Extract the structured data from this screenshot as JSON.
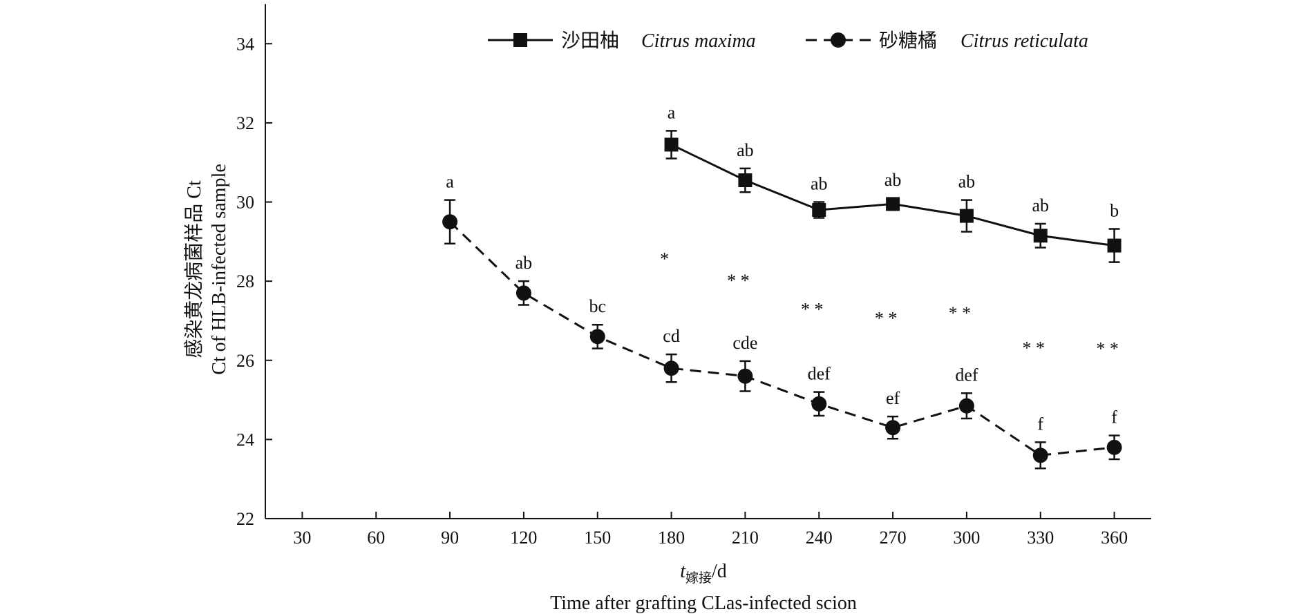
{
  "chart_data": {
    "type": "line",
    "x": [
      30,
      60,
      90,
      120,
      150,
      180,
      210,
      240,
      270,
      300,
      330,
      360
    ],
    "xlim": [
      15,
      375
    ],
    "ylim": [
      22,
      35
    ],
    "xticks": [
      30,
      60,
      90,
      120,
      150,
      180,
      210,
      240,
      270,
      300,
      330,
      360
    ],
    "yticks": [
      22,
      24,
      26,
      28,
      30,
      32,
      34
    ],
    "xlabel_var": "t",
    "xlabel_sub": "嫁接",
    "xlabel_unit": "/d",
    "xlabel_en": "Time after grafting CLas-infected scion",
    "ylabel_cn": "感染黄龙病菌样品 Ct",
    "ylabel_en": "Ct of HLB-infected sample",
    "legend_position": "top-right",
    "grid": false,
    "series": [
      {
        "name_cn": "沙田柚",
        "name_latin": "Citrus maxima",
        "marker": "square",
        "line": "solid",
        "color": "#111111",
        "x": [
          180,
          210,
          240,
          270,
          300,
          330,
          360
        ],
        "y": [
          31.45,
          30.55,
          29.8,
          29.95,
          29.65,
          29.15,
          28.9
        ],
        "err": [
          0.35,
          0.3,
          0.2,
          0.15,
          0.4,
          0.3,
          0.42
        ],
        "letters": [
          "a",
          "ab",
          "ab",
          "ab",
          "ab",
          "ab",
          "b"
        ]
      },
      {
        "name_cn": "砂糖橘",
        "name_latin": "Citrus reticulata",
        "marker": "circle",
        "line": "dashed",
        "color": "#111111",
        "x": [
          90,
          120,
          150,
          180,
          210,
          240,
          270,
          300,
          330,
          360
        ],
        "y": [
          29.5,
          27.7,
          26.6,
          25.8,
          25.6,
          24.9,
          24.3,
          24.85,
          23.6,
          23.8
        ],
        "err": [
          0.55,
          0.3,
          0.3,
          0.35,
          0.38,
          0.3,
          0.28,
          0.32,
          0.33,
          0.3
        ],
        "letters": [
          "a",
          "ab",
          "bc",
          "cd",
          "cde",
          "def",
          "ef",
          "def",
          "f",
          "f"
        ]
      }
    ],
    "significance": [
      {
        "x": 180,
        "label": "*"
      },
      {
        "x": 210,
        "label": "* *"
      },
      {
        "x": 240,
        "label": "* *"
      },
      {
        "x": 270,
        "label": "* *"
      },
      {
        "x": 300,
        "label": "* *"
      },
      {
        "x": 330,
        "label": "* *"
      },
      {
        "x": 360,
        "label": "* *"
      }
    ]
  }
}
